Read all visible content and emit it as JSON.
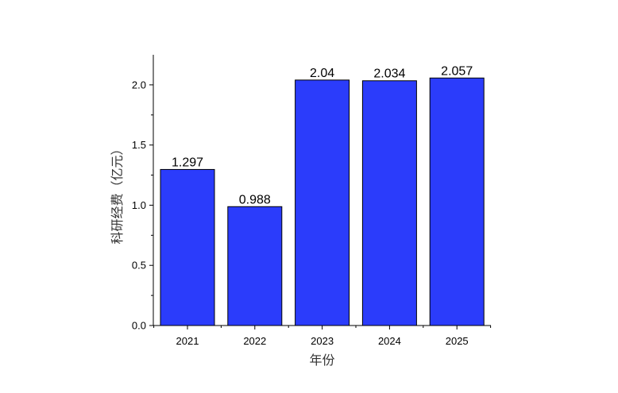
{
  "chart_data": {
    "type": "bar",
    "categories": [
      "2021",
      "2022",
      "2023",
      "2024",
      "2025"
    ],
    "values": [
      1.297,
      0.988,
      2.04,
      2.034,
      2.057
    ],
    "data_labels": [
      "1.297",
      "0.988",
      "2.04",
      "2.034",
      "2.057"
    ],
    "xlabel": "年份",
    "ylabel": "科研经费（亿元）",
    "ylim": [
      0,
      2.25
    ],
    "y_ticks": [
      0.0,
      0.5,
      1.0,
      1.5,
      2.0
    ],
    "y_tick_labels": [
      "0.0",
      "0.5",
      "1.0",
      "1.5",
      "2.0"
    ],
    "grid": false,
    "bar_color": "#2b3cfb",
    "bar_edge_color": "#000000"
  }
}
